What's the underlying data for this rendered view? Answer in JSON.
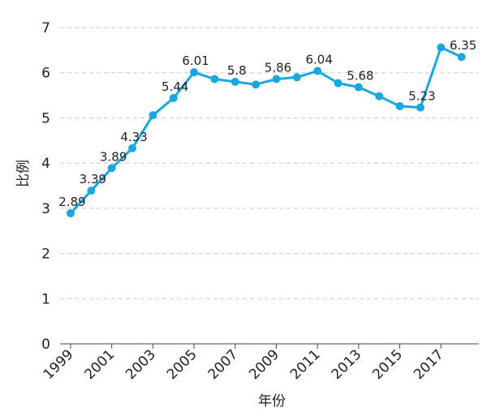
{
  "chart_data": {
    "type": "line",
    "xlabel": "年份",
    "ylabel": "比例",
    "ylim": [
      0,
      7
    ],
    "yticks": [
      0,
      1,
      2,
      3,
      4,
      5,
      6,
      7
    ],
    "xlim": [
      1999,
      2018
    ],
    "xticks": [
      1999,
      2001,
      2003,
      2005,
      2007,
      2009,
      2011,
      2013,
      2015,
      2017
    ],
    "grid": "horizontal dashed",
    "color": "#1aa7e0",
    "x": [
      1999,
      2000,
      2001,
      2002,
      2003,
      2004,
      2005,
      2006,
      2007,
      2008,
      2009,
      2010,
      2011,
      2012,
      2013,
      2014,
      2015,
      2016,
      2017,
      2018
    ],
    "y": [
      2.89,
      3.39,
      3.89,
      4.33,
      5.06,
      5.44,
      6.01,
      5.86,
      5.8,
      5.74,
      5.86,
      5.9,
      6.04,
      5.77,
      5.68,
      5.48,
      5.26,
      5.23,
      6.56,
      6.35
    ],
    "data_labels": [
      {
        "x": 1999,
        "y": 2.89,
        "text": "2.89"
      },
      {
        "x": 2000,
        "y": 3.39,
        "text": "3.39"
      },
      {
        "x": 2001,
        "y": 3.89,
        "text": "3.89"
      },
      {
        "x": 2002,
        "y": 4.33,
        "text": "4.33"
      },
      {
        "x": 2004,
        "y": 5.44,
        "text": "5.44"
      },
      {
        "x": 2005,
        "y": 6.01,
        "text": "6.01"
      },
      {
        "x": 2007,
        "y": 5.8,
        "text": "5.8"
      },
      {
        "x": 2009,
        "y": 5.86,
        "text": "5.86"
      },
      {
        "x": 2011,
        "y": 6.04,
        "text": "6.04"
      },
      {
        "x": 2013,
        "y": 5.68,
        "text": "5.68"
      },
      {
        "x": 2016,
        "y": 5.23,
        "text": "5.23"
      },
      {
        "x": 2018,
        "y": 6.35,
        "text": "6.35"
      }
    ]
  }
}
